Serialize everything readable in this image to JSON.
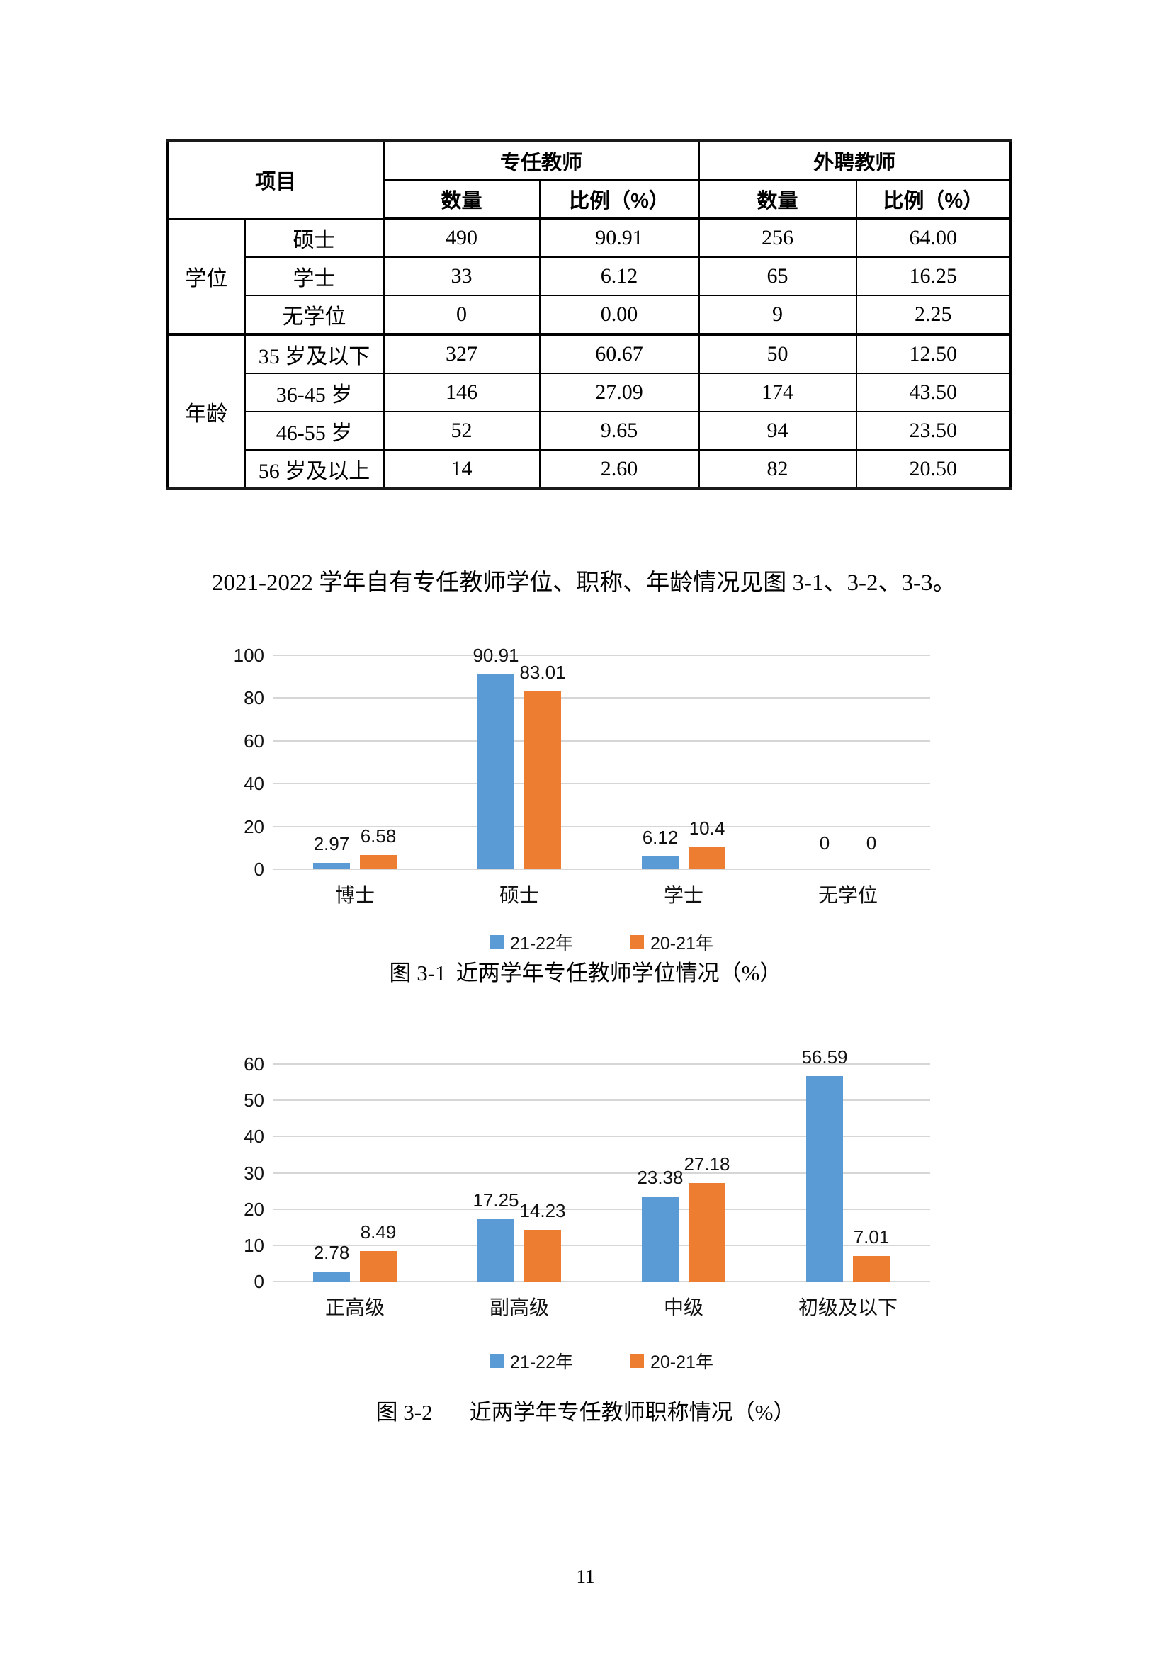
{
  "table": {
    "header": {
      "item": "项目",
      "fulltime": "专任教师",
      "external": "外聘教师",
      "qty": "数量",
      "ratio": "比例（%）"
    },
    "sections": [
      {
        "category": "学位",
        "rows": [
          [
            "硕士",
            "490",
            "90.91",
            "256",
            "64.00"
          ],
          [
            "学士",
            "33",
            "6.12",
            "65",
            "16.25"
          ],
          [
            "无学位",
            "0",
            "0.00",
            "9",
            "2.25"
          ]
        ]
      },
      {
        "category": "年龄",
        "rows": [
          [
            "35 岁及以下",
            "327",
            "60.67",
            "50",
            "12.50"
          ],
          [
            "36-45 岁",
            "146",
            "27.09",
            "174",
            "43.50"
          ],
          [
            "46-55 岁",
            "52",
            "9.65",
            "94",
            "23.50"
          ],
          [
            "56 岁及以上",
            "14",
            "2.60",
            "82",
            "20.50"
          ]
        ]
      }
    ]
  },
  "intro_paragraph": "2021-2022 学年自有专任教师学位、职称、年龄情况见图 3-1、3-2、3-3。",
  "figures": [
    {
      "label": "图 3-1",
      "caption": "近两学年专任教师学位情况（%）"
    },
    {
      "label": "图 3-2",
      "caption": "近两学年专任教师职称情况（%）"
    }
  ],
  "colors": {
    "series_21_22": "#5B9BD5",
    "series_20_21": "#ED7D31",
    "gridline": "#D6D6D6"
  },
  "chart_data": [
    {
      "type": "bar",
      "title": "图 3-1 近两学年专任教师学位情况（%）",
      "categories": [
        "博士",
        "硕士",
        "学士",
        "无学位"
      ],
      "series": [
        {
          "name": "21-22年",
          "color": "#5B9BD5",
          "values": [
            2.97,
            90.91,
            6.12,
            0
          ],
          "labels": [
            "2.97",
            "90.91",
            "6.12",
            "0"
          ]
        },
        {
          "name": "20-21年",
          "color": "#ED7D31",
          "values": [
            6.58,
            83.01,
            10.4,
            0
          ],
          "labels": [
            "6.58",
            "83.01",
            "10.4",
            "0"
          ]
        }
      ],
      "xlabel": "",
      "ylabel": "",
      "ylim": [
        0,
        100
      ],
      "ytick_step": 20,
      "grid": true,
      "legend_position": "bottom"
    },
    {
      "type": "bar",
      "title": "图 3-2 近两学年专任教师职称情况（%）",
      "categories": [
        "正高级",
        "副高级",
        "中级",
        "初级及以下"
      ],
      "series": [
        {
          "name": "21-22年",
          "color": "#5B9BD5",
          "values": [
            2.78,
            17.25,
            23.38,
            56.59
          ],
          "labels": [
            "2.78",
            "17.25",
            "23.38",
            "56.59"
          ]
        },
        {
          "name": "20-21年",
          "color": "#ED7D31",
          "values": [
            8.49,
            14.23,
            27.18,
            7.01
          ],
          "labels": [
            "8.49",
            "14.23",
            "27.18",
            "7.01"
          ]
        }
      ],
      "xlabel": "",
      "ylabel": "",
      "ylim": [
        0,
        60
      ],
      "ytick_step": 10,
      "grid": true,
      "legend_position": "bottom"
    }
  ],
  "page_number": "11"
}
